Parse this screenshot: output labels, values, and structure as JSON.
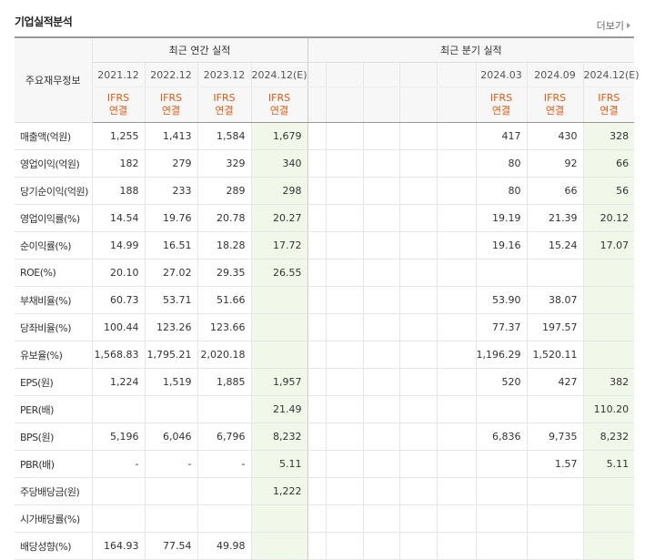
{
  "title": "기업실적분석",
  "more_label": "더보기",
  "header": {
    "corner": "주요재무정보",
    "annual": "최근 연간 실적",
    "quarterly": "최근 분기 실적",
    "annual_periods": [
      "2021.12",
      "2022.12",
      "2023.12",
      "2024.12(E)"
    ],
    "quarter_periods": [
      "",
      "",
      "",
      "",
      "",
      "2024.03",
      "2024.09",
      "2024.12(E)"
    ],
    "ifrs": "IFRS",
    "consolidated": "연결"
  },
  "rows": [
    {
      "label": "매출액(억원)",
      "annual": [
        "1,255",
        "1,413",
        "1,584",
        "1,679"
      ],
      "quarter": [
        "",
        "",
        "",
        "",
        "",
        "417",
        "430",
        "328"
      ]
    },
    {
      "label": "영업이익(억원)",
      "annual": [
        "182",
        "279",
        "329",
        "340"
      ],
      "quarter": [
        "",
        "",
        "",
        "",
        "",
        "80",
        "92",
        "66"
      ]
    },
    {
      "label": "당기순이익(억원)",
      "annual": [
        "188",
        "233",
        "289",
        "298"
      ],
      "quarter": [
        "",
        "",
        "",
        "",
        "",
        "80",
        "66",
        "56"
      ]
    },
    {
      "label": "영업이익률(%)",
      "annual": [
        "14.54",
        "19.76",
        "20.78",
        "20.27"
      ],
      "quarter": [
        "",
        "",
        "",
        "",
        "",
        "19.19",
        "21.39",
        "20.12"
      ]
    },
    {
      "label": "순이익률(%)",
      "annual": [
        "14.99",
        "16.51",
        "18.28",
        "17.72"
      ],
      "quarter": [
        "",
        "",
        "",
        "",
        "",
        "19.16",
        "15.24",
        "17.07"
      ]
    },
    {
      "label": "ROE(%)",
      "annual": [
        "20.10",
        "27.02",
        "29.35",
        "26.55"
      ],
      "quarter": [
        "",
        "",
        "",
        "",
        "",
        "",
        "",
        ""
      ]
    },
    {
      "label": "부채비율(%)",
      "annual": [
        "60.73",
        "53.71",
        "51.66",
        ""
      ],
      "quarter": [
        "",
        "",
        "",
        "",
        "",
        "53.90",
        "38.07",
        ""
      ]
    },
    {
      "label": "당좌비율(%)",
      "annual": [
        "100.44",
        "123.26",
        "123.66",
        ""
      ],
      "quarter": [
        "",
        "",
        "",
        "",
        "",
        "77.37",
        "197.57",
        ""
      ]
    },
    {
      "label": "유보율(%)",
      "annual": [
        "1,568.83",
        "1,795.21",
        "2,020.18",
        ""
      ],
      "quarter": [
        "",
        "",
        "",
        "",
        "",
        "1,196.29",
        "1,520.11",
        ""
      ]
    },
    {
      "label": "EPS(원)",
      "annual": [
        "1,224",
        "1,519",
        "1,885",
        "1,957"
      ],
      "quarter": [
        "",
        "",
        "",
        "",
        "",
        "520",
        "427",
        "382"
      ]
    },
    {
      "label": "PER(배)",
      "annual": [
        "",
        "",
        "",
        "21.49"
      ],
      "quarter": [
        "",
        "",
        "",
        "",
        "",
        "",
        "",
        "110.20"
      ]
    },
    {
      "label": "BPS(원)",
      "annual": [
        "5,196",
        "6,046",
        "6,796",
        "8,232"
      ],
      "quarter": [
        "",
        "",
        "",
        "",
        "",
        "6,836",
        "9,735",
        "8,232"
      ]
    },
    {
      "label": "PBR(배)",
      "annual": [
        "-",
        "-",
        "-",
        "5.11"
      ],
      "quarter": [
        "",
        "",
        "",
        "",
        "",
        "",
        "1.57",
        "5.11"
      ]
    },
    {
      "label": "주당배당금(원)",
      "annual": [
        "",
        "",
        "",
        "1,222"
      ],
      "quarter": [
        "",
        "",
        "",
        "",
        "",
        "",
        "",
        ""
      ]
    },
    {
      "label": "시가배당률(%)",
      "annual": [
        "",
        "",
        "",
        ""
      ],
      "quarter": [
        "",
        "",
        "",
        "",
        "",
        "",
        "",
        ""
      ]
    },
    {
      "label": "배당성향(%)",
      "annual": [
        "164.93",
        "77.54",
        "49.98",
        ""
      ],
      "quarter": [
        "",
        "",
        "",
        "",
        "",
        "",
        "",
        ""
      ]
    }
  ]
}
